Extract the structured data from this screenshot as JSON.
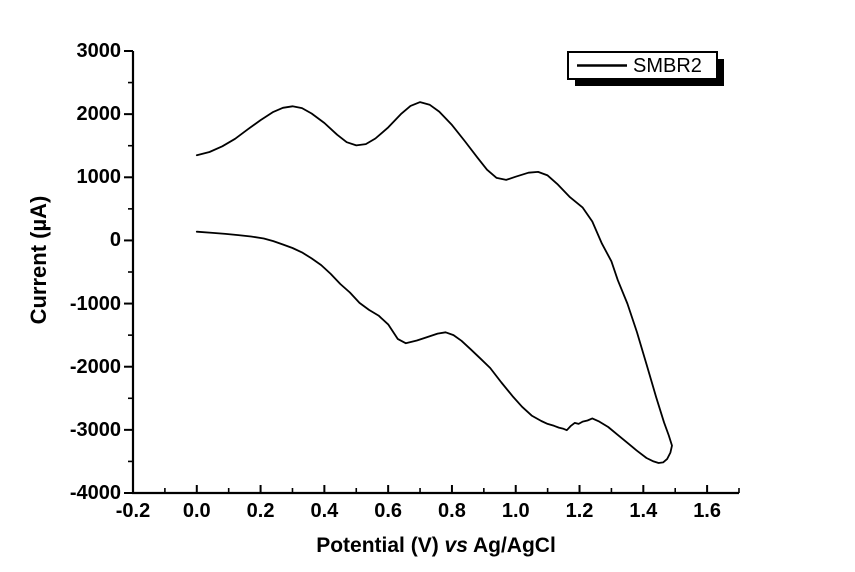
{
  "chart_data": {
    "type": "line",
    "title": "",
    "xlabel": "Potential (V) vs Ag/AgCl",
    "xlabel_parts": {
      "pre": "Potential (V) ",
      "italic": "vs",
      "post": " Ag/AgCl"
    },
    "ylabel": "Current (µA)",
    "xlim": [
      -0.2,
      1.7
    ],
    "ylim": [
      -4000,
      3000
    ],
    "grid": false,
    "x_ticks_major": [
      -0.2,
      0.0,
      0.2,
      0.4,
      0.6,
      0.8,
      1.0,
      1.2,
      1.4,
      1.6
    ],
    "x_tick_labels": [
      "-0.2",
      "0.0",
      "0.2",
      "0.4",
      "0.6",
      "0.8",
      "1.0",
      "1.2",
      "1.4",
      "1.6"
    ],
    "x_ticks_minor": [
      -0.1,
      0.1,
      0.3,
      0.5,
      0.7,
      0.9,
      1.1,
      1.3,
      1.5,
      1.7
    ],
    "y_ticks_major": [
      3000,
      2000,
      1000,
      0,
      -1000,
      -2000,
      -3000,
      -4000
    ],
    "y_tick_labels": [
      "3000",
      "2000",
      "1000",
      "0",
      "-1000",
      "-2000",
      "-3000",
      "-4000"
    ],
    "y_ticks_minor": [
      2500,
      1500,
      500,
      -500,
      -1500,
      -2500,
      -3500
    ],
    "legend": {
      "position": "top-right",
      "entries": [
        {
          "label": "SMBR2",
          "line_color": "#000000"
        }
      ]
    },
    "series": [
      {
        "name": "SMBR2",
        "color": "#000000",
        "points": [
          [
            0.0,
            1350
          ],
          [
            0.04,
            1400
          ],
          [
            0.08,
            1490
          ],
          [
            0.12,
            1610
          ],
          [
            0.16,
            1760
          ],
          [
            0.2,
            1905
          ],
          [
            0.24,
            2035
          ],
          [
            0.27,
            2100
          ],
          [
            0.3,
            2125
          ],
          [
            0.33,
            2095
          ],
          [
            0.36,
            2010
          ],
          [
            0.4,
            1860
          ],
          [
            0.44,
            1675
          ],
          [
            0.47,
            1555
          ],
          [
            0.5,
            1505
          ],
          [
            0.53,
            1525
          ],
          [
            0.56,
            1615
          ],
          [
            0.6,
            1790
          ],
          [
            0.64,
            2000
          ],
          [
            0.67,
            2130
          ],
          [
            0.7,
            2190
          ],
          [
            0.73,
            2150
          ],
          [
            0.76,
            2040
          ],
          [
            0.8,
            1830
          ],
          [
            0.84,
            1575
          ],
          [
            0.88,
            1310
          ],
          [
            0.91,
            1120
          ],
          [
            0.94,
            990
          ],
          [
            0.97,
            958
          ],
          [
            1.0,
            1010
          ],
          [
            1.04,
            1072
          ],
          [
            1.07,
            1085
          ],
          [
            1.1,
            1030
          ],
          [
            1.13,
            895
          ],
          [
            1.17,
            685
          ],
          [
            1.21,
            520
          ],
          [
            1.24,
            300
          ],
          [
            1.27,
            -50
          ],
          [
            1.3,
            -330
          ],
          [
            1.32,
            -630
          ],
          [
            1.35,
            -1000
          ],
          [
            1.38,
            -1450
          ],
          [
            1.41,
            -1960
          ],
          [
            1.44,
            -2480
          ],
          [
            1.465,
            -2880
          ],
          [
            1.48,
            -3090
          ],
          [
            1.49,
            -3250
          ],
          [
            1.485,
            -3360
          ],
          [
            1.475,
            -3460
          ],
          [
            1.462,
            -3515
          ],
          [
            1.448,
            -3525
          ],
          [
            1.432,
            -3500
          ],
          [
            1.41,
            -3445
          ],
          [
            1.38,
            -3330
          ],
          [
            1.35,
            -3205
          ],
          [
            1.32,
            -3080
          ],
          [
            1.29,
            -2955
          ],
          [
            1.262,
            -2870
          ],
          [
            1.24,
            -2818
          ],
          [
            1.225,
            -2852
          ],
          [
            1.21,
            -2870
          ],
          [
            1.197,
            -2905
          ],
          [
            1.185,
            -2890
          ],
          [
            1.172,
            -2940
          ],
          [
            1.16,
            -3005
          ],
          [
            1.148,
            -2980
          ],
          [
            1.135,
            -2965
          ],
          [
            1.12,
            -2935
          ],
          [
            1.1,
            -2905
          ],
          [
            1.08,
            -2860
          ],
          [
            1.05,
            -2775
          ],
          [
            1.02,
            -2635
          ],
          [
            0.99,
            -2465
          ],
          [
            0.955,
            -2250
          ],
          [
            0.92,
            -2020
          ],
          [
            0.89,
            -1875
          ],
          [
            0.86,
            -1730
          ],
          [
            0.83,
            -1590
          ],
          [
            0.805,
            -1500
          ],
          [
            0.78,
            -1455
          ],
          [
            0.755,
            -1475
          ],
          [
            0.72,
            -1535
          ],
          [
            0.69,
            -1585
          ],
          [
            0.655,
            -1628
          ],
          [
            0.63,
            -1560
          ],
          [
            0.6,
            -1330
          ],
          [
            0.57,
            -1190
          ],
          [
            0.54,
            -1100
          ],
          [
            0.51,
            -990
          ],
          [
            0.48,
            -825
          ],
          [
            0.45,
            -690
          ],
          [
            0.42,
            -530
          ],
          [
            0.39,
            -390
          ],
          [
            0.36,
            -285
          ],
          [
            0.33,
            -190
          ],
          [
            0.3,
            -120
          ],
          [
            0.27,
            -65
          ],
          [
            0.24,
            -10
          ],
          [
            0.21,
            30
          ],
          [
            0.17,
            62
          ],
          [
            0.13,
            85
          ],
          [
            0.09,
            103
          ],
          [
            0.05,
            120
          ],
          [
            0.0,
            138
          ]
        ]
      }
    ]
  },
  "colors": {
    "background": "#ffffff",
    "axis": "#000000",
    "curve": "#000000",
    "legend_background": "#ffffff",
    "legend_border": "#000000",
    "legend_shadow": "#000000"
  }
}
